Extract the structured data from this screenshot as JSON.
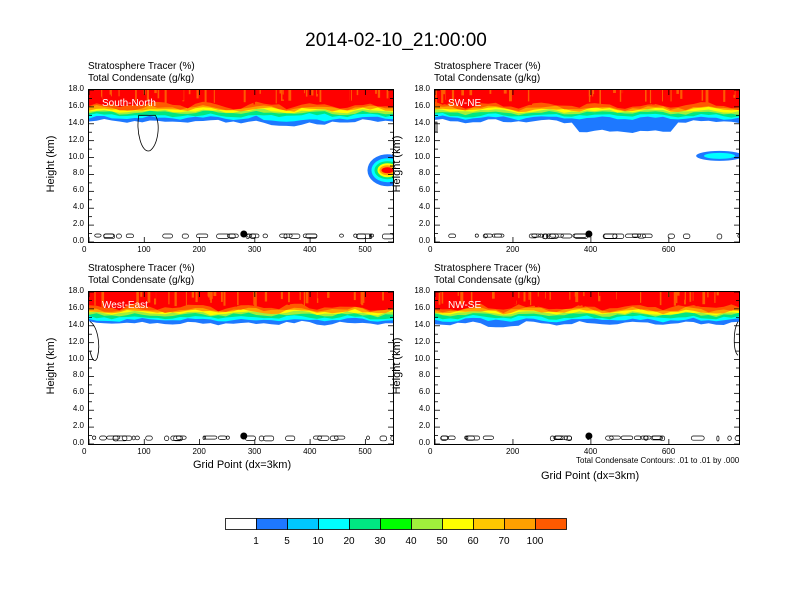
{
  "title": "2014-02-10_21:00:00",
  "panels": [
    {
      "name": "South-North",
      "header1": "Stratosphere Tracer   (%)",
      "header2": "Total Condensate   (g/kg)",
      "ylabel": "Height (km)",
      "xlabel": "",
      "xmax": 550,
      "xticks": [
        "0",
        "100",
        "200",
        "300",
        "400",
        "500"
      ],
      "xtickvals": [
        0,
        100,
        200,
        300,
        400,
        500
      ],
      "marker_x": 280
    },
    {
      "name": "SW-NE",
      "header1": "Stratosphere Tracer   (%)",
      "header2": "Total Condensate   (g/kg)",
      "ylabel": "Height (km)",
      "xlabel": "",
      "xmax": 780,
      "xticks": [
        "0",
        "200",
        "400",
        "600"
      ],
      "xtickvals": [
        0,
        200,
        400,
        600
      ],
      "marker_x": 395
    },
    {
      "name": "West-East",
      "header1": "Stratosphere Tracer   (%)",
      "header2": "Total Condensate   (g/kg)",
      "ylabel": "Height (km)",
      "xlabel": "Grid Point (dx=3km)",
      "xmax": 550,
      "xticks": [
        "0",
        "100",
        "200",
        "300",
        "400",
        "500"
      ],
      "xtickvals": [
        0,
        100,
        200,
        300,
        400,
        500
      ],
      "marker_x": 280
    },
    {
      "name": "NW-SE",
      "header1": "Stratosphere Tracer   (%)",
      "header2": "Total Condensate   (g/kg)",
      "ylabel": "Height (km)",
      "xlabel": "Grid Point (dx=3km)",
      "xmax": 780,
      "xticks": [
        "0",
        "200",
        "400",
        "600"
      ],
      "xtickvals": [
        0,
        200,
        400,
        600
      ],
      "marker_x": 395,
      "note": "Total Condensate Contours: .01 to .01 by .000"
    }
  ],
  "yticks": [
    "0.0",
    "2.0",
    "4.0",
    "6.0",
    "8.0",
    "10.0",
    "12.0",
    "14.0",
    "16.0",
    "18.0"
  ],
  "colorbar": {
    "levels": [
      "1",
      "5",
      "10",
      "20",
      "30",
      "40",
      "50",
      "60",
      "70",
      "100"
    ],
    "colors": [
      "#ffffff",
      "#1e78ff",
      "#00c8ff",
      "#00ffff",
      "#00e682",
      "#00ff00",
      "#a0f03c",
      "#ffff00",
      "#ffc800",
      "#ffa000",
      "#ff5a00",
      "#ff0000"
    ]
  },
  "chart_data": [
    {
      "type": "heatmap",
      "title": "South-North",
      "ylim": [
        0,
        18
      ],
      "xlim": [
        0,
        550
      ],
      "series": [
        {
          "name": "Stratosphere Tracer",
          "values": [
            100,
            70,
            50,
            30,
            20,
            10,
            5
          ]
        }
      ]
    },
    {
      "type": "heatmap",
      "title": "SW-NE",
      "ylim": [
        0,
        18
      ],
      "xlim": [
        0,
        780
      ],
      "series": [
        {
          "name": "Stratosphere Tracer",
          "values": [
            100,
            70,
            50,
            30,
            20,
            10,
            5
          ]
        }
      ]
    },
    {
      "type": "heatmap",
      "title": "West-East",
      "ylim": [
        0,
        18
      ],
      "xlim": [
        0,
        550
      ],
      "series": [
        {
          "name": "Stratosphere Tracer",
          "values": [
            100,
            70,
            50,
            30,
            20,
            10,
            5
          ]
        }
      ]
    },
    {
      "type": "heatmap",
      "title": "NW-SE",
      "ylim": [
        0,
        18
      ],
      "xlim": [
        0,
        780
      ],
      "series": [
        {
          "name": "Stratosphere Tracer",
          "values": [
            100,
            70,
            50,
            30,
            20,
            10,
            5
          ]
        }
      ]
    }
  ]
}
